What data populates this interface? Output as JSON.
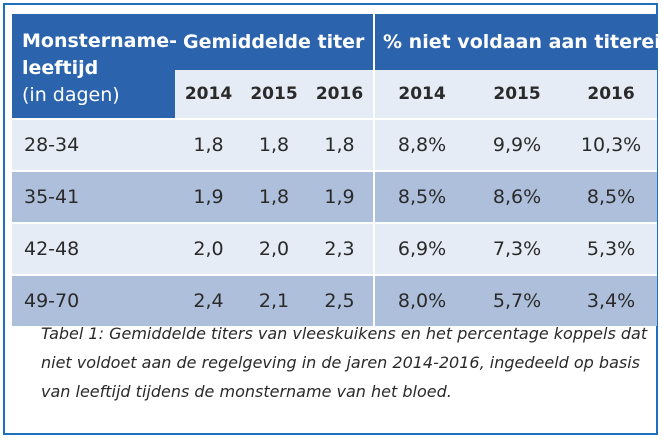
{
  "table": {
    "header": {
      "age_col_line1": "Monstername-",
      "age_col_line2": "leeftijd",
      "age_col_line3": "(in dagen)",
      "group_titer": "Gemiddelde titer",
      "group_pct": "% niet voldaan aan titereis"
    },
    "years_titer": [
      "2014",
      "2015",
      "2016"
    ],
    "years_pct": [
      "2014",
      "2015",
      "2016"
    ],
    "rows": [
      {
        "age": "28-34",
        "titer": [
          "1,8",
          "1,8",
          "1,8"
        ],
        "pct": [
          "8,8%",
          "9,9%",
          "10,3%"
        ]
      },
      {
        "age": "35-41",
        "titer": [
          "1,9",
          "1,8",
          "1,9"
        ],
        "pct": [
          "8,5%",
          "8,6%",
          "8,5%"
        ]
      },
      {
        "age": "42-48",
        "titer": [
          "2,0",
          "2,0",
          "2,3"
        ],
        "pct": [
          "6,9%",
          "7,3%",
          "5,3%"
        ]
      },
      {
        "age": "49-70",
        "titer": [
          "2,4",
          "2,1",
          "2,5"
        ],
        "pct": [
          "8,0%",
          "5,7%",
          "3,4%"
        ]
      }
    ]
  },
  "caption": "Tabel 1: Gemiddelde titers van vleeskuikens en het percentage koppels dat niet voldoet aan de regelgeving in de jaren 2014-2016, ingedeeld op basis van leeftijd tijdens de monstername van het bloed.",
  "colors": {
    "header_blue": "#2b63ad",
    "row_light": "#e6ecf5",
    "row_dark": "#aebfdb",
    "border_blue": "#1f6fbf"
  }
}
